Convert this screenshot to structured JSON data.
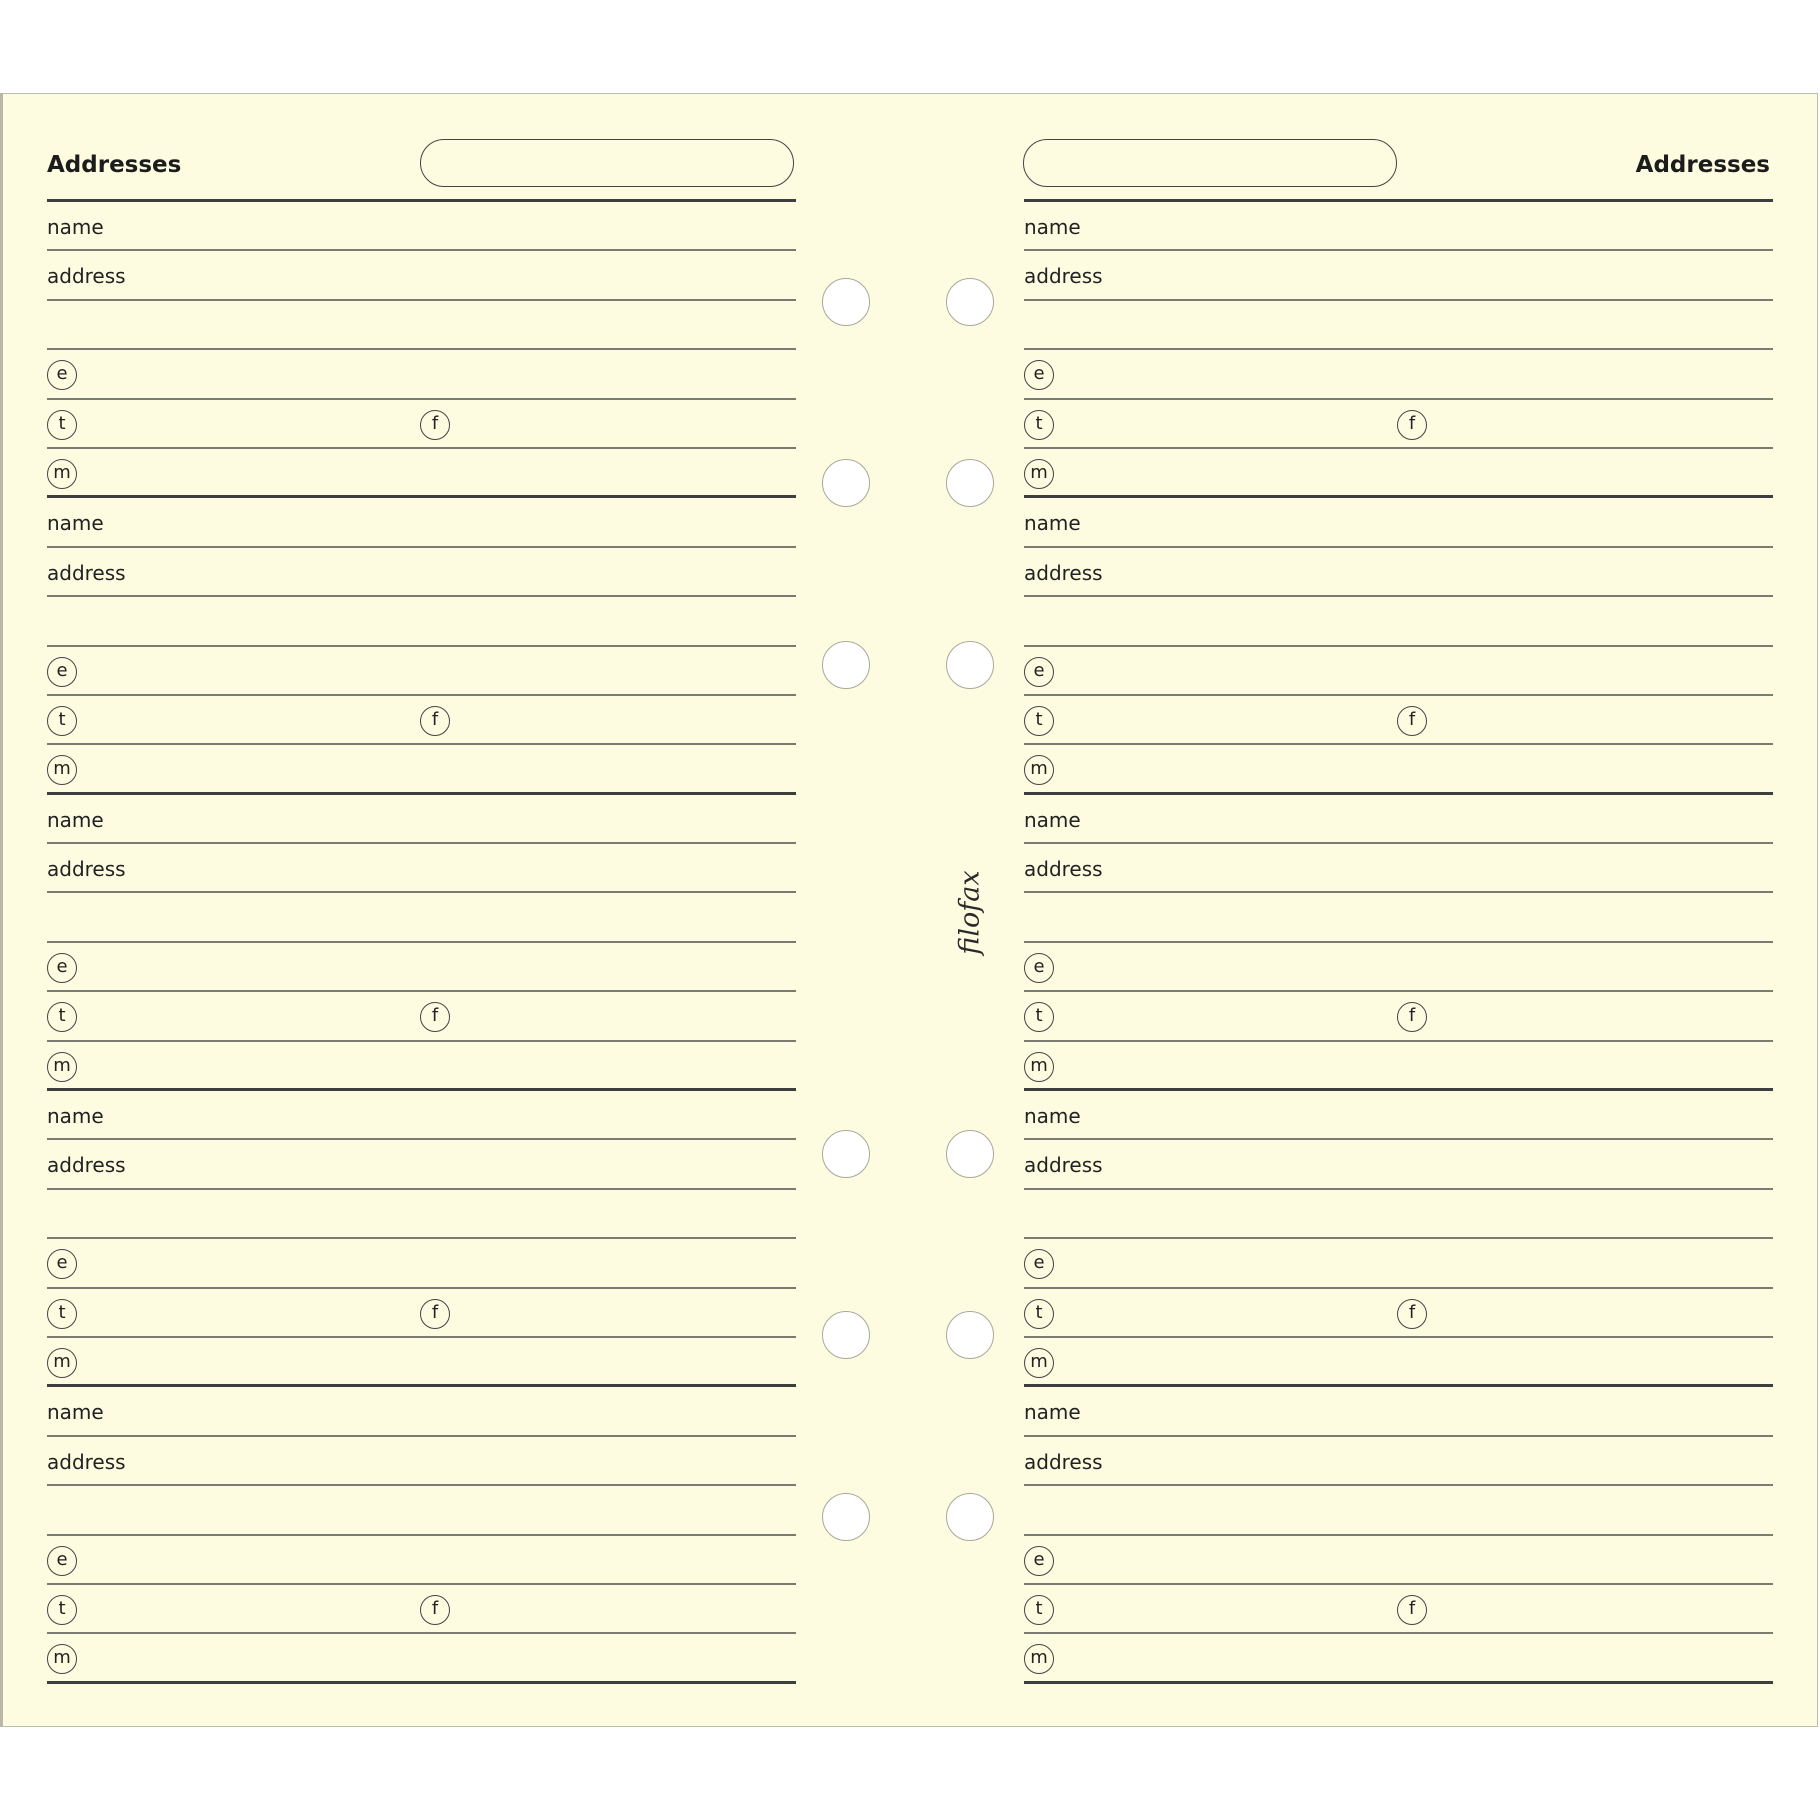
{
  "brand": "filofax",
  "colors": {
    "paper": "#fdfbe0",
    "line": "#3e3e3e"
  },
  "pages": [
    {
      "title": "Addresses",
      "entries": [
        {
          "name_label": "name",
          "address_label": "address",
          "email_icon": "e",
          "telephone_icon": "t",
          "fax_icon": "f",
          "mobile_icon": "m"
        },
        {
          "name_label": "name",
          "address_label": "address",
          "email_icon": "e",
          "telephone_icon": "t",
          "fax_icon": "f",
          "mobile_icon": "m"
        },
        {
          "name_label": "name",
          "address_label": "address",
          "email_icon": "e",
          "telephone_icon": "t",
          "fax_icon": "f",
          "mobile_icon": "m"
        },
        {
          "name_label": "name",
          "address_label": "address",
          "email_icon": "e",
          "telephone_icon": "t",
          "fax_icon": "f",
          "mobile_icon": "m"
        },
        {
          "name_label": "name",
          "address_label": "address",
          "email_icon": "e",
          "telephone_icon": "t",
          "fax_icon": "f",
          "mobile_icon": "m"
        }
      ]
    },
    {
      "title": "Addresses",
      "entries": [
        {
          "name_label": "name",
          "address_label": "address",
          "email_icon": "e",
          "telephone_icon": "t",
          "fax_icon": "f",
          "mobile_icon": "m"
        },
        {
          "name_label": "name",
          "address_label": "address",
          "email_icon": "e",
          "telephone_icon": "t",
          "fax_icon": "f",
          "mobile_icon": "m"
        },
        {
          "name_label": "name",
          "address_label": "address",
          "email_icon": "e",
          "telephone_icon": "t",
          "fax_icon": "f",
          "mobile_icon": "m"
        },
        {
          "name_label": "name",
          "address_label": "address",
          "email_icon": "e",
          "telephone_icon": "t",
          "fax_icon": "f",
          "mobile_icon": "m"
        },
        {
          "name_label": "name",
          "address_label": "address",
          "email_icon": "e",
          "telephone_icon": "t",
          "fax_icon": "f",
          "mobile_icon": "m"
        }
      ]
    }
  ]
}
